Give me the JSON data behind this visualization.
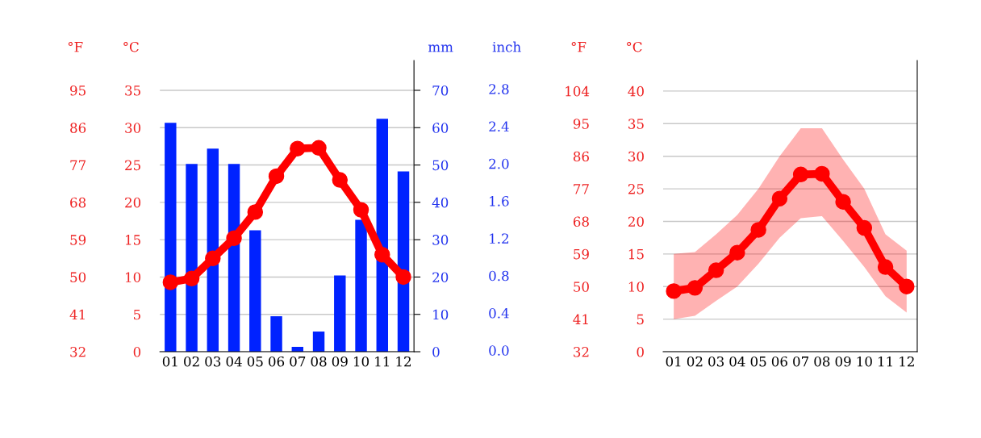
{
  "chart_data": [
    {
      "type": "bar",
      "categories": [
        "01",
        "02",
        "03",
        "04",
        "05",
        "06",
        "07",
        "08",
        "09",
        "10",
        "11",
        "12"
      ],
      "series": [
        {
          "axis": "y2",
          "color": "#0022ff",
          "values": [
            61.3,
            50.3,
            54.4,
            50.3,
            32.5,
            9.5,
            1.3,
            5.4,
            20.4,
            35.3,
            62.4,
            48.3
          ]
        },
        {
          "type": "line",
          "axis": "y",
          "color": "#ff0000",
          "values": [
            9.3,
            9.8,
            12.5,
            15.2,
            18.7,
            23.5,
            27.2,
            27.3,
            23.0,
            19.0,
            13.0,
            10.0
          ]
        }
      ],
      "ylabel": "°C",
      "ylim": [
        0,
        39
      ],
      "yticks": [
        0,
        5,
        10,
        15,
        20,
        25,
        30,
        35
      ],
      "y2label": "mm",
      "y2lim": [
        0,
        78
      ],
      "y2ticks": [
        0,
        10,
        20,
        30,
        40,
        50,
        60,
        70
      ],
      "y3label": "°F",
      "y3lim": [
        32,
        102.2
      ],
      "y3ticks": [
        32,
        41,
        50,
        59,
        68,
        77,
        86,
        95
      ],
      "annotations": [
        "inch",
        "0.0",
        "0.4",
        "0.8",
        "1.2",
        "1.6",
        "2.0",
        "2.4",
        "2.8"
      ],
      "grid": "y",
      "marker": "circle",
      "line_style": "solid"
    },
    {
      "type": "line",
      "categories": [
        "01",
        "02",
        "03",
        "04",
        "05",
        "06",
        "07",
        "08",
        "09",
        "10",
        "11",
        "12"
      ],
      "series": [
        {
          "axis": "y",
          "color": "#ff0000",
          "values": [
            9.3,
            9.8,
            12.5,
            15.2,
            18.7,
            23.5,
            27.2,
            27.3,
            23.0,
            19.0,
            13.0,
            10.0
          ],
          "lower": [
            5.0,
            5.5,
            7.8,
            10.0,
            13.5,
            17.5,
            20.5,
            20.8,
            17.0,
            13.0,
            8.5,
            6.0
          ],
          "upper": [
            15.0,
            15.3,
            18.0,
            21.0,
            25.0,
            30.0,
            34.3,
            34.3,
            29.5,
            25.0,
            18.0,
            15.5
          ]
        }
      ],
      "ylabel": "°C",
      "ylim": [
        0,
        44.7
      ],
      "yticks": [
        0,
        5,
        10,
        15,
        20,
        25,
        30,
        35,
        40
      ],
      "y3label": "°F",
      "y3lim": [
        32,
        112.46
      ],
      "y3ticks": [
        32,
        41,
        50,
        59,
        68,
        77,
        86,
        95,
        104
      ],
      "grid": "y",
      "marker": "circle",
      "line_style": "solid"
    }
  ]
}
